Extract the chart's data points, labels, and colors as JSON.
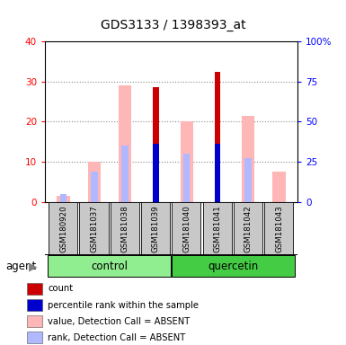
{
  "title": "GDS3133 / 1398393_at",
  "samples": [
    "GSM180920",
    "GSM181037",
    "GSM181038",
    "GSM181039",
    "GSM181040",
    "GSM181041",
    "GSM181042",
    "GSM181043"
  ],
  "ylim_left": [
    0,
    40
  ],
  "ylim_right": [
    0,
    100
  ],
  "yticks_left": [
    0,
    10,
    20,
    30,
    40
  ],
  "yticks_right": [
    0,
    25,
    50,
    75,
    100
  ],
  "yticklabels_right": [
    "0",
    "25",
    "50",
    "75",
    "100%"
  ],
  "count_values": [
    0,
    0,
    0,
    28.5,
    0,
    32.5,
    0,
    0
  ],
  "percentile_values": [
    0,
    0,
    0,
    14.5,
    0,
    14.5,
    0,
    0
  ],
  "absent_value_values": [
    1.5,
    10,
    29,
    0,
    20,
    0,
    21.5,
    7.5
  ],
  "absent_rank_values": [
    2,
    7.5,
    14,
    0,
    12,
    0,
    11,
    0
  ],
  "count_color": "#cc0000",
  "percentile_color": "#0000cc",
  "absent_value_color": "#ffb6b6",
  "absent_rank_color": "#b0b8ff",
  "control_color": "#90ee90",
  "quercetin_color": "#44cc44",
  "gray_box_color": "#c8c8c8",
  "plot_bg": "#ffffff",
  "grid_color": "#888888",
  "legend_items": [
    [
      "#cc0000",
      "count"
    ],
    [
      "#0000cc",
      "percentile rank within the sample"
    ],
    [
      "#ffb6b6",
      "value, Detection Call = ABSENT"
    ],
    [
      "#b0b8ff",
      "rank, Detection Call = ABSENT"
    ]
  ]
}
